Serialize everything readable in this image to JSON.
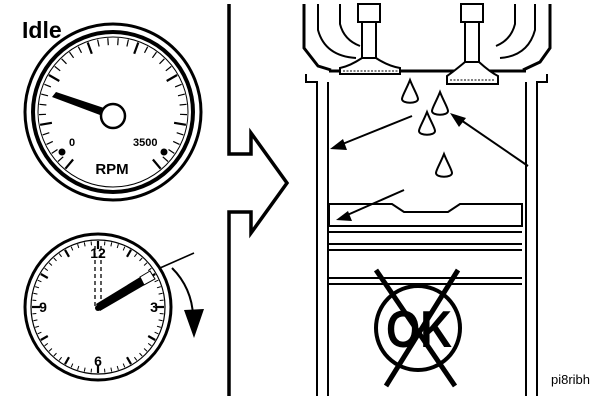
{
  "title": "Idle",
  "tachometer": {
    "unit_label": "RPM",
    "scale_min_label": "0",
    "scale_max_label": "3500"
  },
  "clock": {
    "numerals": {
      "twelve": "12",
      "three": "3",
      "six": "6",
      "nine": "9"
    }
  },
  "ok_symbol": {
    "text": "OK"
  },
  "figure_id": "pi8ribh",
  "colors": {
    "ink": "#000000",
    "paper": "#ffffff"
  }
}
